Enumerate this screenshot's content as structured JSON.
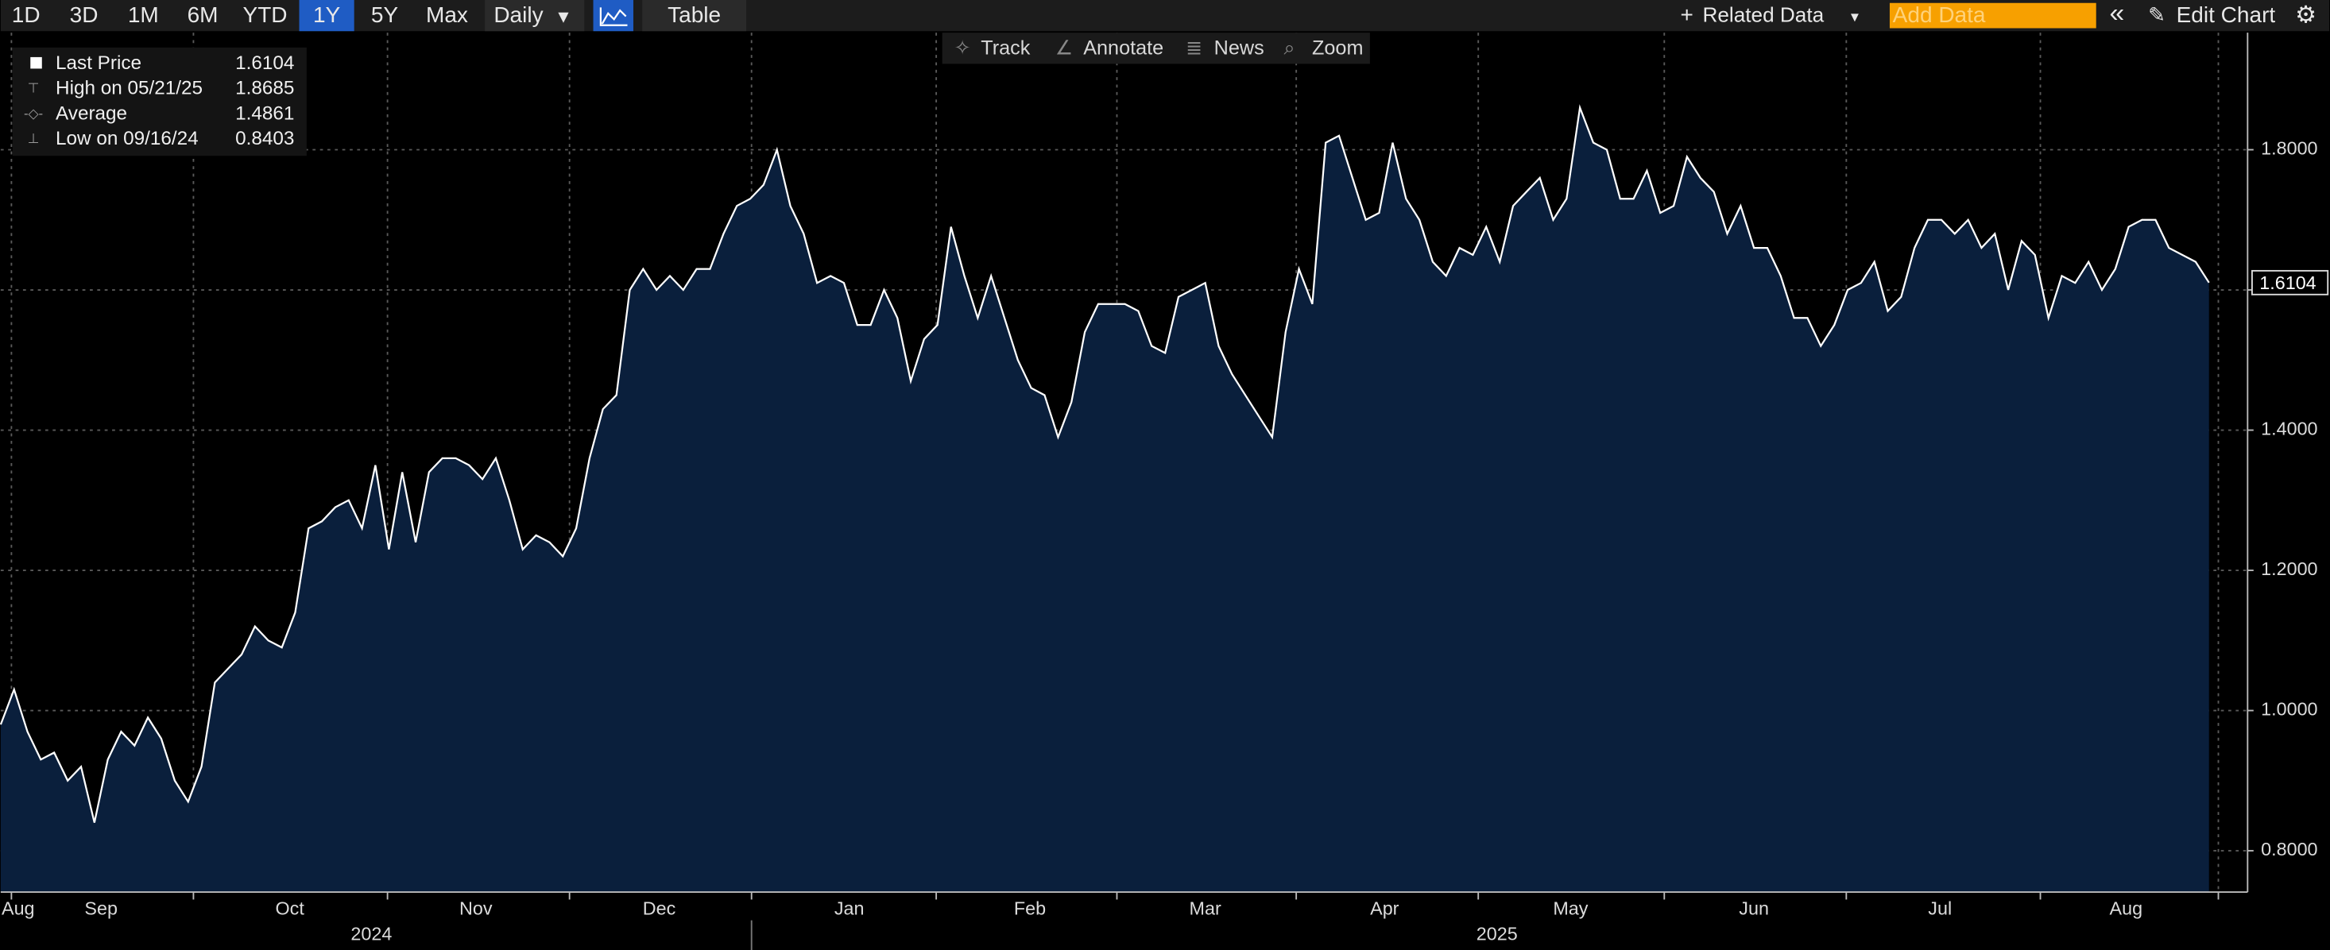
{
  "toolbar": {
    "ranges": [
      "1D",
      "3D",
      "1M",
      "6M",
      "YTD",
      "1Y",
      "5Y",
      "Max"
    ],
    "selected": 5,
    "frequency": "Daily",
    "table": "Table",
    "related": "Related Data",
    "add_data": "Add Data",
    "edit": "Edit Chart"
  },
  "chart_tools": [
    "Track",
    "Annotate",
    "News",
    "Zoom"
  ],
  "chart_data": {
    "type": "area",
    "legend": [
      {
        "label": "Last Price",
        "value": "1.6104"
      },
      {
        "label": "High on 05/21/25",
        "value": "1.8685"
      },
      {
        "label": "Average",
        "value": "1.4861"
      },
      {
        "label": "Low on 09/16/24",
        "value": "0.8403"
      }
    ],
    "values": [
      0.98,
      1.03,
      0.97,
      0.93,
      0.94,
      0.9,
      0.92,
      0.84,
      0.93,
      0.97,
      0.95,
      0.99,
      0.96,
      0.9,
      0.87,
      0.92,
      1.04,
      1.06,
      1.08,
      1.12,
      1.1,
      1.09,
      1.14,
      1.26,
      1.27,
      1.29,
      1.3,
      1.26,
      1.35,
      1.23,
      1.34,
      1.24,
      1.34,
      1.36,
      1.36,
      1.35,
      1.33,
      1.36,
      1.3,
      1.23,
      1.25,
      1.24,
      1.22,
      1.26,
      1.36,
      1.43,
      1.45,
      1.6,
      1.63,
      1.6,
      1.62,
      1.6,
      1.63,
      1.63,
      1.68,
      1.72,
      1.73,
      1.75,
      1.8,
      1.72,
      1.68,
      1.61,
      1.62,
      1.61,
      1.55,
      1.55,
      1.6,
      1.56,
      1.47,
      1.53,
      1.55,
      1.69,
      1.62,
      1.56,
      1.62,
      1.56,
      1.5,
      1.46,
      1.45,
      1.39,
      1.44,
      1.54,
      1.58,
      1.58,
      1.58,
      1.57,
      1.52,
      1.51,
      1.59,
      1.6,
      1.61,
      1.52,
      1.48,
      1.45,
      1.42,
      1.39,
      1.54,
      1.63,
      1.58,
      1.81,
      1.82,
      1.76,
      1.7,
      1.71,
      1.81,
      1.73,
      1.7,
      1.64,
      1.62,
      1.66,
      1.65,
      1.69,
      1.64,
      1.72,
      1.74,
      1.76,
      1.7,
      1.73,
      1.86,
      1.81,
      1.8,
      1.73,
      1.73,
      1.77,
      1.71,
      1.72,
      1.79,
      1.76,
      1.74,
      1.68,
      1.72,
      1.66,
      1.66,
      1.62,
      1.56,
      1.56,
      1.52,
      1.55,
      1.6,
      1.61,
      1.64,
      1.57,
      1.59,
      1.66,
      1.7,
      1.7,
      1.68,
      1.7,
      1.66,
      1.68,
      1.6,
      1.67,
      1.65,
      1.56,
      1.62,
      1.61,
      1.64,
      1.6,
      1.63,
      1.69,
      1.7,
      1.7,
      1.66,
      1.65,
      1.64,
      1.6104
    ],
    "color": "#ffffff",
    "fill": "#0a1f3c",
    "xlim": [
      0,
      165
    ],
    "xticks": [
      {
        "value": 1.3,
        "label": "Aug"
      },
      {
        "value": 7.5,
        "label": "Sep"
      },
      {
        "value": 21.6,
        "label": "Oct"
      },
      {
        "value": 35.5,
        "label": "Nov"
      },
      {
        "value": 49.2,
        "label": "Dec"
      },
      {
        "value": 63.4,
        "label": "Jan"
      },
      {
        "value": 76.9,
        "label": "Feb"
      },
      {
        "value": 90,
        "label": "Mar"
      },
      {
        "value": 103.4,
        "label": "Apr"
      },
      {
        "value": 117.3,
        "label": "May"
      },
      {
        "value": 131,
        "label": "Jun"
      },
      {
        "value": 144.9,
        "label": "Jul"
      },
      {
        "value": 158.8,
        "label": "Aug"
      }
    ],
    "xgrid": [
      0.8,
      14.4,
      28.9,
      42.5,
      56.1,
      69.9,
      83.4,
      96.8,
      110.4,
      124.3,
      137.9,
      152.4,
      165.7
    ],
    "years": [
      {
        "value": 27.7,
        "label": "2024"
      },
      {
        "value": 111.8,
        "label": "2025"
      }
    ],
    "year_divider": 56.1,
    "ylim": [
      0.741,
      1.967
    ],
    "yticks": [
      {
        "value": 0.8,
        "label": "0.8000"
      },
      {
        "value": 1.0,
        "label": "1.0000"
      },
      {
        "value": 1.2,
        "label": "1.2000"
      },
      {
        "value": 1.4,
        "label": "1.4000"
      },
      {
        "value": 1.6,
        "label": "1.6000"
      },
      {
        "value": 1.8,
        "label": "1.8000"
      }
    ],
    "grid": true
  }
}
